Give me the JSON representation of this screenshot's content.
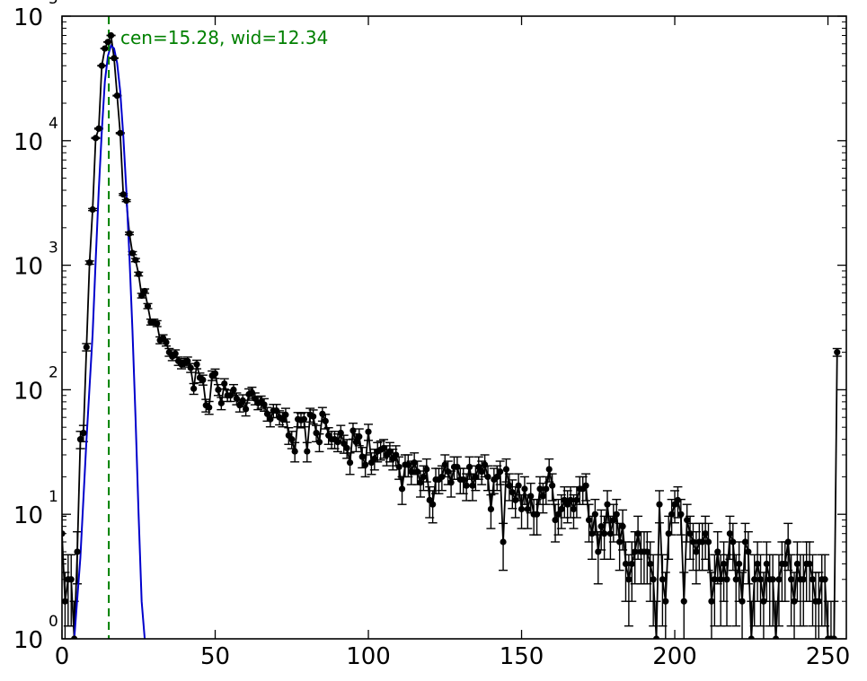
{
  "chart_data": {
    "type": "scatter",
    "title": "",
    "xlabel": "",
    "ylabel": "",
    "xlim": [
      0,
      256
    ],
    "ylim": [
      1,
      100000
    ],
    "yscale": "log",
    "grid": false,
    "x_ticks": [
      {
        "value": 0,
        "label": "0"
      },
      {
        "value": 50,
        "label": "50"
      },
      {
        "value": 100,
        "label": "100"
      },
      {
        "value": 150,
        "label": "150"
      },
      {
        "value": 200,
        "label": "200"
      },
      {
        "value": 250,
        "label": "250"
      }
    ],
    "y_ticks": [
      {
        "value": 1,
        "base": "10",
        "exp": "0"
      },
      {
        "value": 10,
        "base": "10",
        "exp": "1"
      },
      {
        "value": 100,
        "base": "10",
        "exp": "2"
      },
      {
        "value": 1000,
        "base": "10",
        "exp": "3"
      },
      {
        "value": 10000,
        "base": "10",
        "exp": "4"
      },
      {
        "value": 100000,
        "base": "10",
        "exp": "5"
      }
    ],
    "annotation": {
      "text": "cen=15.28, wid=12.34",
      "color": "#008000"
    },
    "center_line": {
      "x": 15.28,
      "color": "#008000",
      "style": "dashed"
    },
    "fit": {
      "color": "#0000cc",
      "x": [
        4,
        6,
        8,
        10,
        11,
        12,
        13,
        14,
        15,
        16,
        17,
        18,
        19,
        20,
        21,
        22,
        23,
        24,
        25,
        26,
        27
      ],
      "y": [
        1,
        4.5,
        40,
        280,
        1100,
        4000,
        12000,
        30000,
        48000,
        58000,
        55000,
        42000,
        25000,
        11000,
        4000,
        1200,
        300,
        60,
        10,
        2,
        1
      ]
    },
    "series": [
      {
        "color": "#000000",
        "marker": "circle",
        "errorbars": true,
        "points": [
          [
            0,
            7
          ],
          [
            1,
            2
          ],
          [
            2,
            3
          ],
          [
            3,
            3
          ],
          [
            4,
            1
          ],
          [
            5,
            5
          ],
          [
            6,
            40
          ],
          [
            7,
            45
          ],
          [
            8,
            220
          ],
          [
            9,
            1050
          ],
          [
            10,
            2800
          ],
          [
            11,
            10500
          ],
          [
            12,
            12500
          ],
          [
            13,
            40000
          ],
          [
            14,
            55000
          ],
          [
            15,
            62000
          ],
          [
            16,
            70000
          ],
          [
            17,
            46000
          ],
          [
            18,
            23000
          ],
          [
            19,
            11500
          ],
          [
            20,
            3700
          ],
          [
            21,
            3300
          ],
          [
            22,
            1800
          ],
          [
            23,
            1250
          ],
          [
            24,
            1100
          ],
          [
            25,
            850
          ],
          [
            26,
            570
          ],
          [
            27,
            620
          ],
          [
            28,
            470
          ],
          [
            29,
            350
          ],
          [
            30,
            350
          ],
          [
            31,
            340
          ],
          [
            32,
            250
          ],
          [
            33,
            260
          ],
          [
            34,
            240
          ],
          [
            35,
            200
          ],
          [
            36,
            185
          ],
          [
            37,
            195
          ],
          [
            38,
            170
          ],
          [
            39,
            160
          ],
          [
            40,
            165
          ],
          [
            41,
            170
          ],
          [
            42,
            150
          ],
          [
            43,
            102
          ],
          [
            44,
            160
          ],
          [
            45,
            125
          ],
          [
            46,
            120
          ],
          [
            47,
            75
          ],
          [
            48,
            72
          ],
          [
            49,
            130
          ],
          [
            50,
            135
          ],
          [
            51,
            100
          ],
          [
            52,
            78
          ],
          [
            53,
            112
          ],
          [
            54,
            90
          ],
          [
            55,
            90
          ],
          [
            56,
            100
          ],
          [
            57,
            85
          ],
          [
            58,
            75
          ],
          [
            59,
            82
          ],
          [
            60,
            70
          ],
          [
            61,
            92
          ],
          [
            62,
            95
          ],
          [
            63,
            85
          ],
          [
            64,
            78
          ],
          [
            65,
            80
          ],
          [
            66,
            76
          ],
          [
            67,
            64
          ],
          [
            68,
            58
          ],
          [
            69,
            68
          ],
          [
            70,
            68
          ],
          [
            71,
            60
          ],
          [
            72,
            58
          ],
          [
            73,
            63
          ],
          [
            74,
            43
          ],
          [
            75,
            40
          ],
          [
            76,
            32
          ],
          [
            77,
            58
          ],
          [
            78,
            57
          ],
          [
            79,
            58
          ],
          [
            80,
            32
          ],
          [
            81,
            63
          ],
          [
            82,
            61
          ],
          [
            83,
            45
          ],
          [
            84,
            38
          ],
          [
            85,
            64
          ],
          [
            86,
            56
          ],
          [
            87,
            43
          ],
          [
            88,
            40
          ],
          [
            89,
            40
          ],
          [
            90,
            38
          ],
          [
            91,
            45
          ],
          [
            92,
            37
          ],
          [
            93,
            34
          ],
          [
            94,
            26
          ],
          [
            95,
            47
          ],
          [
            96,
            38
          ],
          [
            97,
            42
          ],
          [
            98,
            29
          ],
          [
            99,
            25
          ],
          [
            100,
            46
          ],
          [
            101,
            26
          ],
          [
            102,
            28
          ],
          [
            103,
            32
          ],
          [
            104,
            33
          ],
          [
            105,
            34
          ],
          [
            106,
            30
          ],
          [
            107,
            32
          ],
          [
            108,
            28
          ],
          [
            109,
            30
          ],
          [
            110,
            24
          ],
          [
            111,
            16
          ],
          [
            112,
            25
          ],
          [
            113,
            25
          ],
          [
            114,
            22
          ],
          [
            115,
            26
          ],
          [
            116,
            22
          ],
          [
            117,
            18
          ],
          [
            118,
            20
          ],
          [
            119,
            23
          ],
          [
            120,
            13
          ],
          [
            121,
            12
          ],
          [
            122,
            19
          ],
          [
            123,
            19
          ],
          [
            124,
            20
          ],
          [
            125,
            25
          ],
          [
            126,
            22
          ],
          [
            127,
            18
          ],
          [
            128,
            24
          ],
          [
            129,
            24
          ],
          [
            130,
            19
          ],
          [
            131,
            19
          ],
          [
            132,
            17
          ],
          [
            133,
            24
          ],
          [
            134,
            17
          ],
          [
            135,
            20
          ],
          [
            136,
            24
          ],
          [
            137,
            22
          ],
          [
            138,
            25
          ],
          [
            139,
            20
          ],
          [
            140,
            11
          ],
          [
            141,
            19
          ],
          [
            142,
            20
          ],
          [
            143,
            22
          ],
          [
            144,
            6
          ],
          [
            145,
            23
          ],
          [
            146,
            17
          ],
          [
            147,
            15
          ],
          [
            148,
            13
          ],
          [
            149,
            17
          ],
          [
            150,
            11
          ],
          [
            151,
            16
          ],
          [
            152,
            11
          ],
          [
            153,
            14
          ],
          [
            154,
            10
          ],
          [
            155,
            10
          ],
          [
            156,
            16
          ],
          [
            157,
            14
          ],
          [
            158,
            16
          ],
          [
            159,
            23
          ],
          [
            160,
            17
          ],
          [
            161,
            9
          ],
          [
            162,
            10
          ],
          [
            163,
            11
          ],
          [
            164,
            13
          ],
          [
            165,
            12
          ],
          [
            166,
            13
          ],
          [
            167,
            11
          ],
          [
            168,
            13
          ],
          [
            169,
            16
          ],
          [
            170,
            16
          ],
          [
            171,
            17
          ],
          [
            172,
            9
          ],
          [
            173,
            7
          ],
          [
            174,
            10
          ],
          [
            175,
            5
          ],
          [
            176,
            8
          ],
          [
            177,
            7
          ],
          [
            178,
            12
          ],
          [
            179,
            7
          ],
          [
            180,
            9
          ],
          [
            181,
            10
          ],
          [
            182,
            6
          ],
          [
            183,
            8
          ],
          [
            184,
            4
          ],
          [
            185,
            3
          ],
          [
            186,
            4
          ],
          [
            187,
            5
          ],
          [
            188,
            7
          ],
          [
            189,
            5
          ],
          [
            190,
            5
          ],
          [
            191,
            5
          ],
          [
            192,
            4
          ],
          [
            193,
            3
          ],
          [
            194,
            1
          ],
          [
            195,
            12
          ],
          [
            196,
            3
          ],
          [
            197,
            2
          ],
          [
            198,
            7
          ],
          [
            199,
            10
          ],
          [
            200,
            12
          ],
          [
            201,
            13
          ],
          [
            202,
            10
          ],
          [
            203,
            2
          ],
          [
            204,
            9
          ],
          [
            205,
            7
          ],
          [
            206,
            6
          ],
          [
            207,
            5
          ],
          [
            208,
            6
          ],
          [
            209,
            6
          ],
          [
            210,
            7
          ],
          [
            211,
            6
          ],
          [
            212,
            2
          ],
          [
            213,
            3
          ],
          [
            214,
            5
          ],
          [
            215,
            3
          ],
          [
            216,
            4
          ],
          [
            217,
            3
          ],
          [
            218,
            7
          ],
          [
            219,
            6
          ],
          [
            220,
            3
          ],
          [
            221,
            4
          ],
          [
            222,
            2
          ],
          [
            223,
            6
          ],
          [
            224,
            5
          ],
          [
            225,
            1
          ],
          [
            226,
            3
          ],
          [
            227,
            4
          ],
          [
            228,
            3
          ],
          [
            229,
            2
          ],
          [
            230,
            4
          ],
          [
            231,
            3
          ],
          [
            232,
            3
          ],
          [
            233,
            1
          ],
          [
            234,
            3
          ],
          [
            235,
            4
          ],
          [
            236,
            4
          ],
          [
            237,
            6
          ],
          [
            238,
            3
          ],
          [
            239,
            2
          ],
          [
            240,
            4
          ],
          [
            241,
            3
          ],
          [
            242,
            3
          ],
          [
            243,
            4
          ],
          [
            244,
            4
          ],
          [
            245,
            3
          ],
          [
            246,
            2
          ],
          [
            247,
            2
          ],
          [
            248,
            3
          ],
          [
            249,
            3
          ],
          [
            250,
            1
          ],
          [
            251,
            1
          ],
          [
            252,
            1
          ],
          [
            253,
            200
          ]
        ]
      }
    ]
  }
}
